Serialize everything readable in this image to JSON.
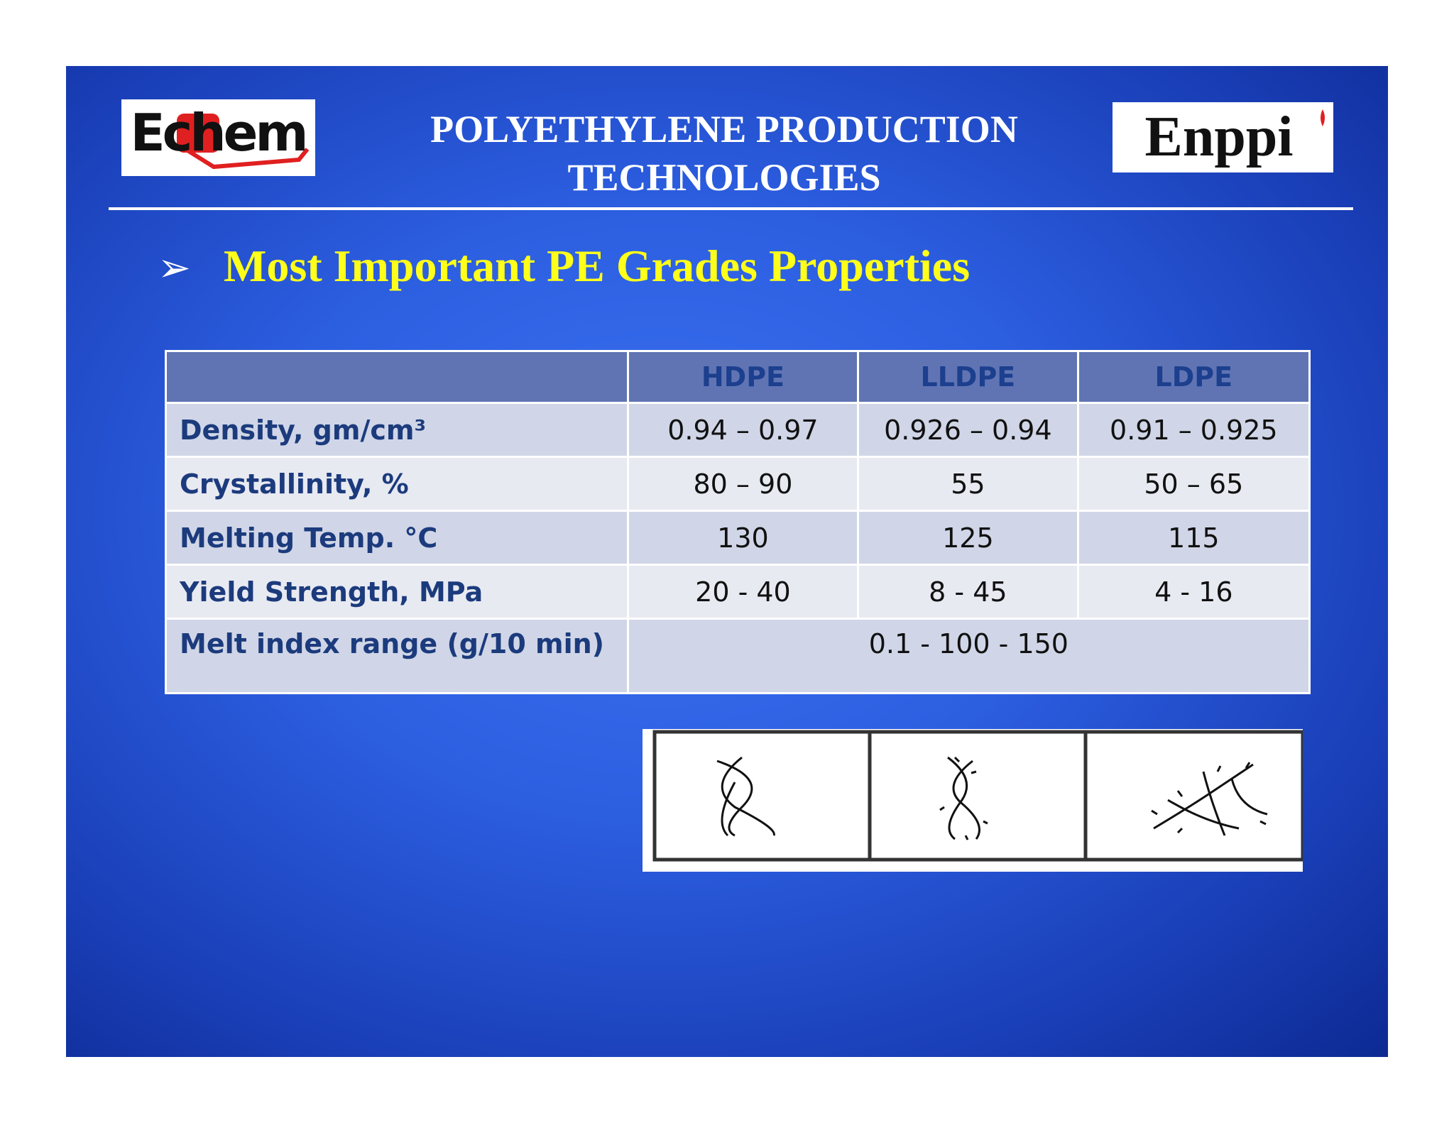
{
  "header": {
    "title": "POLYETHYLENE PRODUCTION TECHNOLOGIES",
    "logo_left": "Echem",
    "logo_right": "Enppi"
  },
  "heading": "Most Important PE Grades Properties",
  "table": {
    "columns": [
      "HDPE",
      "LLDPE",
      "LDPE"
    ],
    "rows": [
      {
        "label": "Density, gm/cm³",
        "values": [
          "0.94 – 0.97",
          "0.926 – 0.94",
          "0.91 – 0.925"
        ]
      },
      {
        "label": "Crystallinity, %",
        "values": [
          "80 – 90",
          "55",
          "50 – 65"
        ]
      },
      {
        "label": "Melting Temp. °C",
        "values": [
          "130",
          "125",
          "115"
        ]
      },
      {
        "label": "Yield Strength, MPa",
        "values": [
          "20 - 40",
          "8 - 45",
          "4 - 16"
        ]
      },
      {
        "label": "Melt index range (g/10 min)",
        "values": [
          "0.1  - 100 - 150"
        ]
      }
    ]
  }
}
